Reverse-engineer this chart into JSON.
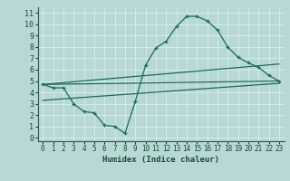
{
  "xlabel": "Humidex (Indice chaleur)",
  "background_color": "#b8d8d4",
  "grid_color": "#d4ece8",
  "line_color": "#1a6b5a",
  "x_ticks": [
    0,
    1,
    2,
    3,
    4,
    5,
    6,
    7,
    8,
    9,
    10,
    11,
    12,
    13,
    14,
    15,
    16,
    17,
    18,
    19,
    20,
    21,
    22,
    23
  ],
  "y_ticks": [
    0,
    1,
    2,
    3,
    4,
    5,
    6,
    7,
    8,
    9,
    10,
    11
  ],
  "ylim": [
    -0.3,
    11.5
  ],
  "xlim": [
    -0.5,
    23.5
  ],
  "series1_x": [
    0,
    1,
    2,
    3,
    4,
    5,
    6,
    7,
    8,
    9,
    10,
    11,
    12,
    13,
    14,
    15,
    16,
    17,
    18,
    19,
    20,
    21,
    22,
    23
  ],
  "series1_y": [
    4.7,
    4.4,
    4.4,
    3.0,
    2.3,
    2.2,
    1.1,
    1.0,
    0.4,
    3.2,
    6.4,
    7.9,
    8.5,
    9.8,
    10.7,
    10.7,
    10.3,
    9.5,
    8.0,
    7.1,
    6.6,
    6.2,
    5.5,
    5.0
  ],
  "series2_x": [
    0,
    23
  ],
  "series2_y": [
    4.7,
    5.0
  ],
  "series3_x": [
    0,
    23
  ],
  "series3_y": [
    4.7,
    6.5
  ],
  "series4_x": [
    0,
    23
  ],
  "series4_y": [
    3.3,
    4.8
  ]
}
